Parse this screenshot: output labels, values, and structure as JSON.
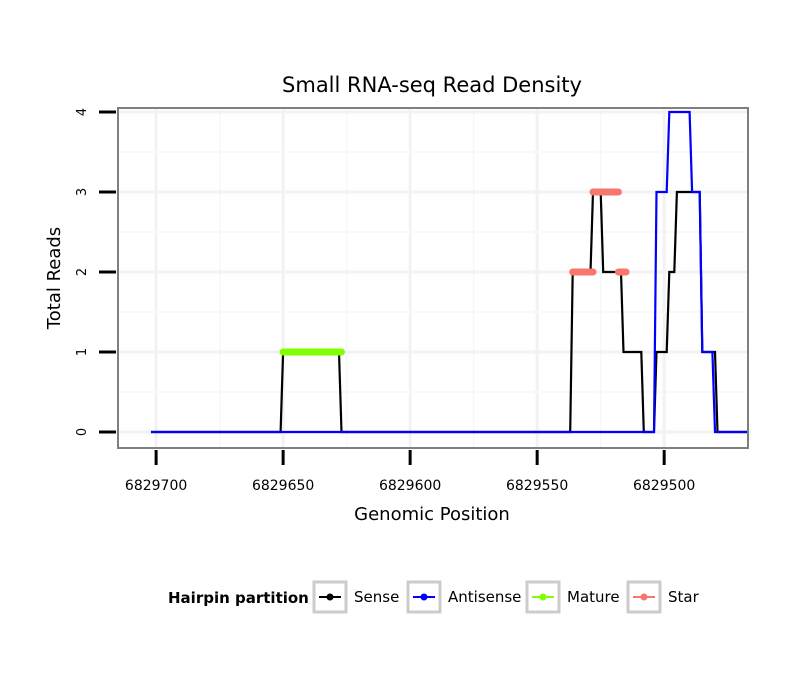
{
  "chart_data": {
    "type": "line",
    "title": "Small RNA-seq Read Density",
    "xlabel": "Genomic Position",
    "ylabel": "Total Reads",
    "x_reversed": true,
    "xlim": [
      6829715,
      6829467
    ],
    "ylim": [
      -0.2,
      4.05
    ],
    "x_ticks": [
      6829700,
      6829650,
      6829600,
      6829550,
      6829500
    ],
    "x_tick_labels": [
      "6829700",
      "6829650",
      "6829600",
      "6829550",
      "6829500"
    ],
    "y_ticks": [
      0,
      1,
      2,
      3,
      4
    ],
    "y_tick_labels": [
      "0",
      "1",
      "2",
      "3",
      "4"
    ],
    "grid": true,
    "legend": {
      "title": "Hairpin partition",
      "position": "bottom",
      "entries": [
        "Sense",
        "Antisense",
        "Mature",
        "Star"
      ]
    },
    "series": [
      {
        "name": "Sense",
        "color": "#000000",
        "kind": "line",
        "x": [
          6829702,
          6829651,
          6829650,
          6829628,
          6829627,
          6829537,
          6829536,
          6829529,
          6829528,
          6829525,
          6829524,
          6829517,
          6829516,
          6829509,
          6829508,
          6829504,
          6829503,
          6829499,
          6829498,
          6829496,
          6829495,
          6829488,
          6829487,
          6829486,
          6829485,
          6829480,
          6829479,
          6829474,
          6829473,
          6829467
        ],
        "y": [
          0,
          0,
          1,
          1,
          0,
          0,
          2,
          2,
          3,
          3,
          2,
          2,
          1,
          1,
          0,
          0,
          1,
          1,
          2,
          2,
          3,
          3,
          3,
          3,
          1,
          1,
          0,
          0,
          0,
          0
        ]
      },
      {
        "name": "Antisense",
        "color": "#0000ff",
        "kind": "line",
        "x": [
          6829702,
          6829504,
          6829503,
          6829499,
          6829498,
          6829490,
          6829489,
          6829486,
          6829485,
          6829481,
          6829480,
          6829467
        ],
        "y": [
          0,
          0,
          3,
          3,
          4,
          4,
          3,
          3,
          1,
          1,
          0,
          0
        ]
      },
      {
        "name": "Mature",
        "color": "#7fff00",
        "kind": "segment",
        "x": [
          6829650,
          6829627
        ],
        "y": [
          1,
          1
        ]
      },
      {
        "name": "Star",
        "color": "#f8766d",
        "kind": "segments",
        "segments": [
          {
            "x": [
              6829536,
              6829528
            ],
            "y": [
              2,
              2
            ]
          },
          {
            "x": [
              6829528,
              6829518
            ],
            "y": [
              3,
              3
            ]
          },
          {
            "x": [
              6829518,
              6829515
            ],
            "y": [
              2,
              2
            ]
          }
        ]
      }
    ]
  }
}
